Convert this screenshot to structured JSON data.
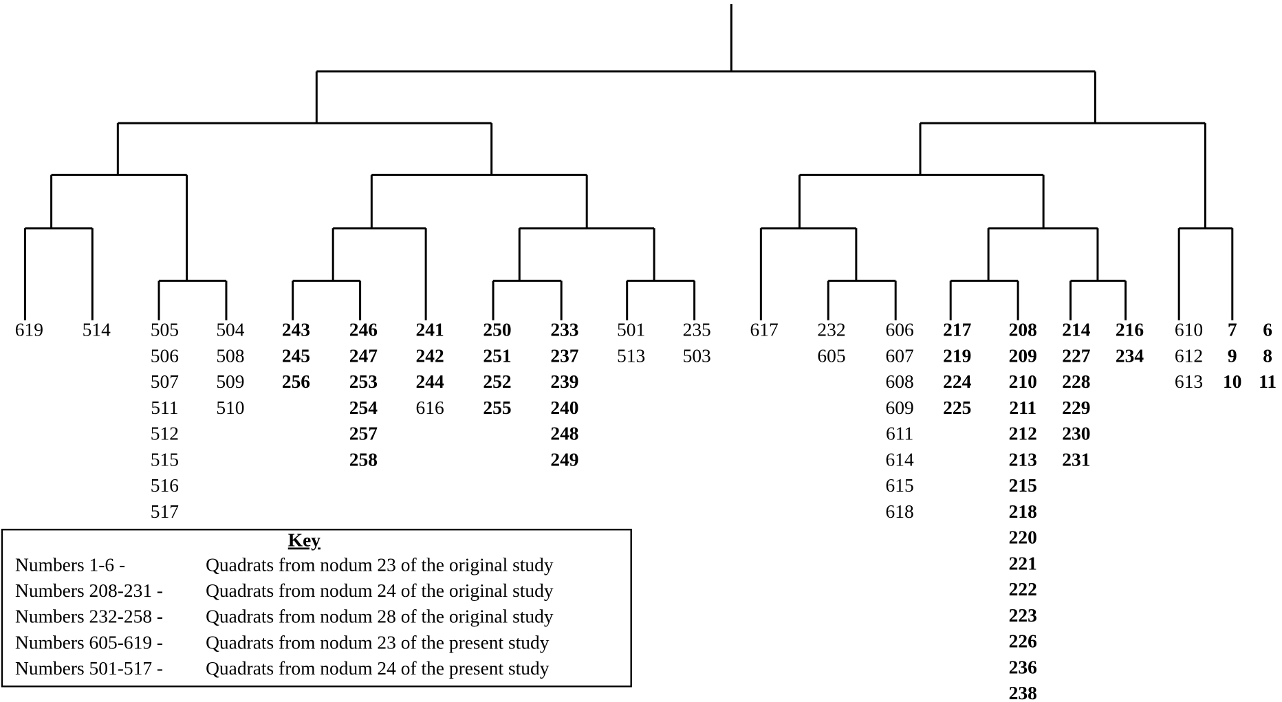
{
  "leaves": [
    {
      "labels": [
        "619"
      ]
    },
    {
      "labels": [
        "514"
      ]
    },
    {
      "labels": [
        "505",
        "506",
        "507",
        "511",
        "512",
        "515",
        "516",
        "517"
      ]
    },
    {
      "labels": [
        "504",
        "508",
        "509",
        "510"
      ]
    },
    {
      "labels": [
        "243",
        "245",
        "256"
      ]
    },
    {
      "labels": [
        "246",
        "247",
        "253",
        "254",
        "257",
        "258"
      ]
    },
    {
      "labels": [
        "241",
        "242",
        "244",
        "616"
      ]
    },
    {
      "labels": [
        "250",
        "251",
        "252",
        "255"
      ]
    },
    {
      "labels": [
        "233",
        "237",
        "239",
        "240",
        "248",
        "249"
      ]
    },
    {
      "labels": [
        "501",
        "513"
      ]
    },
    {
      "labels": [
        "235",
        "503"
      ]
    },
    {
      "labels": [
        "617"
      ]
    },
    {
      "labels": [
        "232",
        "605"
      ]
    },
    {
      "labels": [
        "606",
        "607",
        "608",
        "609",
        "611",
        "614",
        "615",
        "618"
      ]
    },
    {
      "labels": [
        "217",
        "219",
        "224",
        "225"
      ]
    },
    {
      "labels": [
        "208",
        "209",
        "210",
        "211",
        "212",
        "213",
        "215",
        "218",
        "220",
        "221",
        "222",
        "223",
        "226",
        "236",
        "238"
      ]
    },
    {
      "labels": [
        "214",
        "227",
        "228",
        "229",
        "230",
        "231"
      ]
    },
    {
      "labels": [
        "216",
        "234"
      ]
    },
    {
      "labels": [
        "610",
        "612",
        "613"
      ]
    },
    {
      "labels": [
        "7",
        "9",
        "10"
      ]
    },
    {
      "labels": [
        "6",
        "8",
        "11"
      ]
    }
  ],
  "key": {
    "title": "Key",
    "rows": [
      [
        "Numbers 1-6  -",
        "Quadrats from nodum 23 of the original study"
      ],
      [
        "Numbers 208-231  -",
        "Quadrats from nodum 24 of the original study"
      ],
      [
        "Numbers 232-258  -",
        "Quadrats from nodum 28 of the original study"
      ],
      [
        "Numbers 605-619  -",
        "Quadrats from nodum 23 of the present study"
      ],
      [
        "Numbers 501-517  -",
        "Quadrats from nodum 24 of the present study"
      ]
    ]
  }
}
